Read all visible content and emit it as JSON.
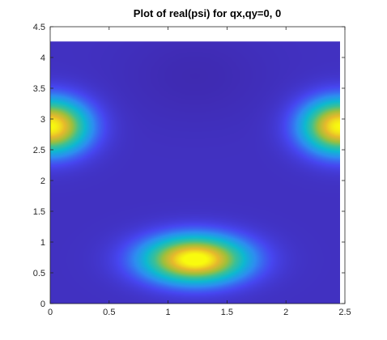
{
  "chart_data": {
    "type": "heatmap",
    "title": "Plot of real(psi) for qx,qy=0, 0",
    "xlabel": "",
    "ylabel": "",
    "xlim": [
      0,
      2.5
    ],
    "ylim": [
      0,
      4.5
    ],
    "xticks": [
      "0",
      "0.5",
      "1",
      "1.5",
      "2",
      "2.5"
    ],
    "yticks": [
      "0",
      "0.5",
      "1",
      "1.5",
      "2",
      "2.5",
      "3",
      "3.5",
      "4",
      "4.5"
    ],
    "data_extent": {
      "x": [
        0,
        2.46
      ],
      "y": [
        0,
        4.26
      ]
    },
    "colormap": "parula",
    "colors": [
      "#3e26a8",
      "#4646f0",
      "#2d8ef0",
      "#0db9d0",
      "#3ec093",
      "#9fbf3b",
      "#e6b92d",
      "#f9fb0e"
    ],
    "background_value": 0.05,
    "peaks": [
      {
        "x": 0.0,
        "y": 2.88,
        "sx": 0.22,
        "sy": 0.3,
        "amplitude": 0.95
      },
      {
        "x": 2.46,
        "y": 2.88,
        "sx": 0.22,
        "sy": 0.3,
        "amplitude": 0.95
      },
      {
        "x": 1.23,
        "y": 0.72,
        "sx": 0.3,
        "sy": 0.26,
        "amplitude": 1.0
      }
    ],
    "grid": false,
    "legend": "none"
  }
}
